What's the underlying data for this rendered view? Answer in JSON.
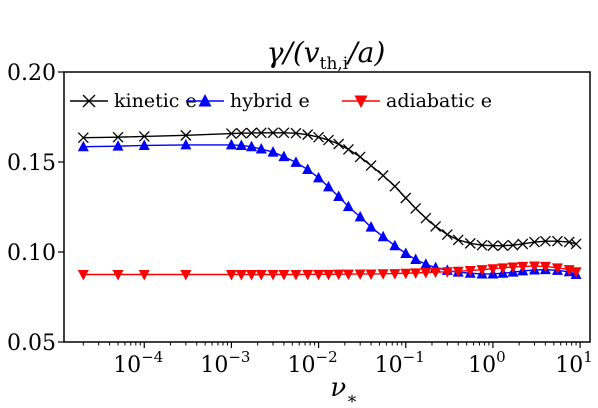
{
  "chart_data": {
    "type": "line",
    "title": "γ/(v_th,i/a)",
    "xlabel": "ν_*",
    "ylabel": "",
    "x_scale": "log",
    "xlim": [
      1.2e-05,
      13
    ],
    "ylim": [
      0.05,
      0.2
    ],
    "x_ticks": [
      0.0001,
      0.001,
      0.01,
      0.1,
      1,
      10
    ],
    "x_tick_labels": [
      {
        "base": "10",
        "exp": "−4"
      },
      {
        "base": "10",
        "exp": "−3"
      },
      {
        "base": "10",
        "exp": "−2"
      },
      {
        "base": "10",
        "exp": "−1"
      },
      {
        "base": "10",
        "exp": "0"
      },
      {
        "base": "10",
        "exp": "1"
      }
    ],
    "y_ticks": [
      0.05,
      0.1,
      0.15,
      0.2
    ],
    "y_tick_labels": [
      "0.05",
      "0.10",
      "0.15",
      "0.20"
    ],
    "grid": false,
    "legend_position": "top",
    "series": [
      {
        "name": "kinetic e",
        "color": "#000000",
        "marker": "x",
        "x": [
          2e-05,
          5e-05,
          0.0001,
          0.0003,
          0.001,
          0.0013,
          0.0017,
          0.0022,
          0.003,
          0.004,
          0.0055,
          0.0075,
          0.01,
          0.013,
          0.017,
          0.022,
          0.03,
          0.04,
          0.055,
          0.075,
          0.1,
          0.13,
          0.17,
          0.22,
          0.3,
          0.4,
          0.55,
          0.75,
          1.0,
          1.3,
          1.7,
          2.2,
          3.0,
          4.0,
          5.5,
          7.5,
          9.0
        ],
        "y": [
          0.1635,
          0.1638,
          0.1642,
          0.1648,
          0.1658,
          0.166,
          0.1661,
          0.1662,
          0.1662,
          0.1662,
          0.166,
          0.1652,
          0.1638,
          0.1622,
          0.16,
          0.157,
          0.1528,
          0.148,
          0.1425,
          0.1365,
          0.13,
          0.1242,
          0.1188,
          0.1142,
          0.1097,
          0.1067,
          0.1048,
          0.1038,
          0.1035,
          0.1035,
          0.1038,
          0.1045,
          0.1055,
          0.106,
          0.106,
          0.1055,
          0.1045
        ]
      },
      {
        "name": "hybrid e",
        "color": "#0000ff",
        "marker": "^",
        "x": [
          2e-05,
          5e-05,
          0.0001,
          0.0003,
          0.001,
          0.0013,
          0.0017,
          0.0022,
          0.003,
          0.004,
          0.0055,
          0.0075,
          0.01,
          0.013,
          0.017,
          0.022,
          0.03,
          0.04,
          0.055,
          0.075,
          0.1,
          0.13,
          0.17,
          0.22,
          0.3,
          0.4,
          0.55,
          0.75,
          1.0,
          1.3,
          1.7,
          2.2,
          3.0,
          4.0,
          5.5,
          7.5,
          9.0
        ],
        "y": [
          0.1585,
          0.1588,
          0.1592,
          0.1595,
          0.1595,
          0.1592,
          0.1585,
          0.1572,
          0.1555,
          0.153,
          0.1498,
          0.1458,
          0.1412,
          0.1362,
          0.1308,
          0.1252,
          0.1195,
          0.1138,
          0.1085,
          0.1035,
          0.0992,
          0.0958,
          0.0932,
          0.0913,
          0.0898,
          0.0888,
          0.0882,
          0.0878,
          0.0878,
          0.0882,
          0.0888,
          0.0895,
          0.09,
          0.0902,
          0.0898,
          0.089,
          0.0875
        ]
      },
      {
        "name": "adiabatic e",
        "color": "#ff0000",
        "marker": "v",
        "x": [
          2e-05,
          5e-05,
          0.0001,
          0.0003,
          0.001,
          0.0013,
          0.0017,
          0.0022,
          0.003,
          0.004,
          0.0055,
          0.0075,
          0.01,
          0.013,
          0.017,
          0.022,
          0.03,
          0.04,
          0.055,
          0.075,
          0.1,
          0.13,
          0.17,
          0.22,
          0.3,
          0.4,
          0.55,
          0.75,
          1.0,
          1.3,
          1.7,
          2.2,
          3.0,
          4.0,
          5.5,
          7.5,
          9.0
        ],
        "y": [
          0.0875,
          0.0875,
          0.0875,
          0.0875,
          0.0875,
          0.0875,
          0.0875,
          0.0875,
          0.0875,
          0.0875,
          0.0875,
          0.0876,
          0.0876,
          0.0876,
          0.0877,
          0.0877,
          0.0878,
          0.0878,
          0.0879,
          0.088,
          0.0882,
          0.0884,
          0.0886,
          0.0888,
          0.089,
          0.0893,
          0.0897,
          0.0902,
          0.0907,
          0.0912,
          0.0917,
          0.092,
          0.0922,
          0.092,
          0.0912,
          0.0902,
          0.089
        ]
      }
    ]
  }
}
